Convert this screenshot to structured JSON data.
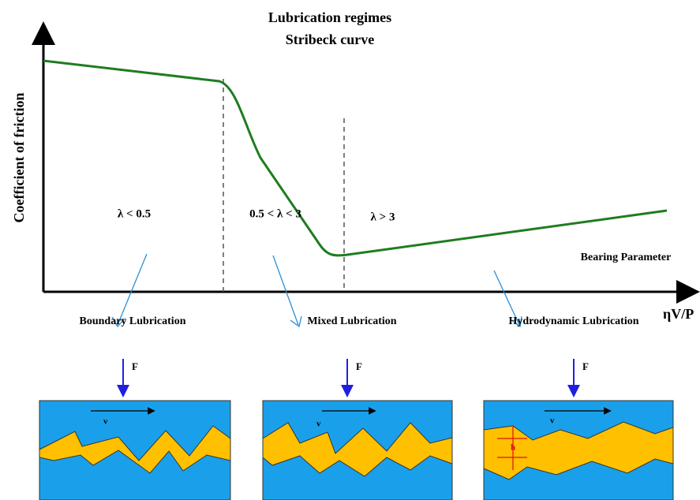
{
  "title": [
    "Lubrication regimes",
    "Stribeck curve"
  ],
  "axes": {
    "y_label": "Coefficient of friction",
    "x_label": "ηV/P",
    "x_caption": "Bearing Parameter"
  },
  "regimes": [
    "λ < 0.5",
    "0.5 < λ < 3",
    "λ > 3"
  ],
  "panels": [
    {
      "label": "Boundary Lubrication",
      "force": "F",
      "velocity": "v"
    },
    {
      "label": "Mixed Lubrication",
      "force": "F",
      "velocity": "v"
    },
    {
      "label": "Hydrodynamic Lubrication",
      "force": "F",
      "velocity": "v",
      "gap": "h"
    }
  ]
}
